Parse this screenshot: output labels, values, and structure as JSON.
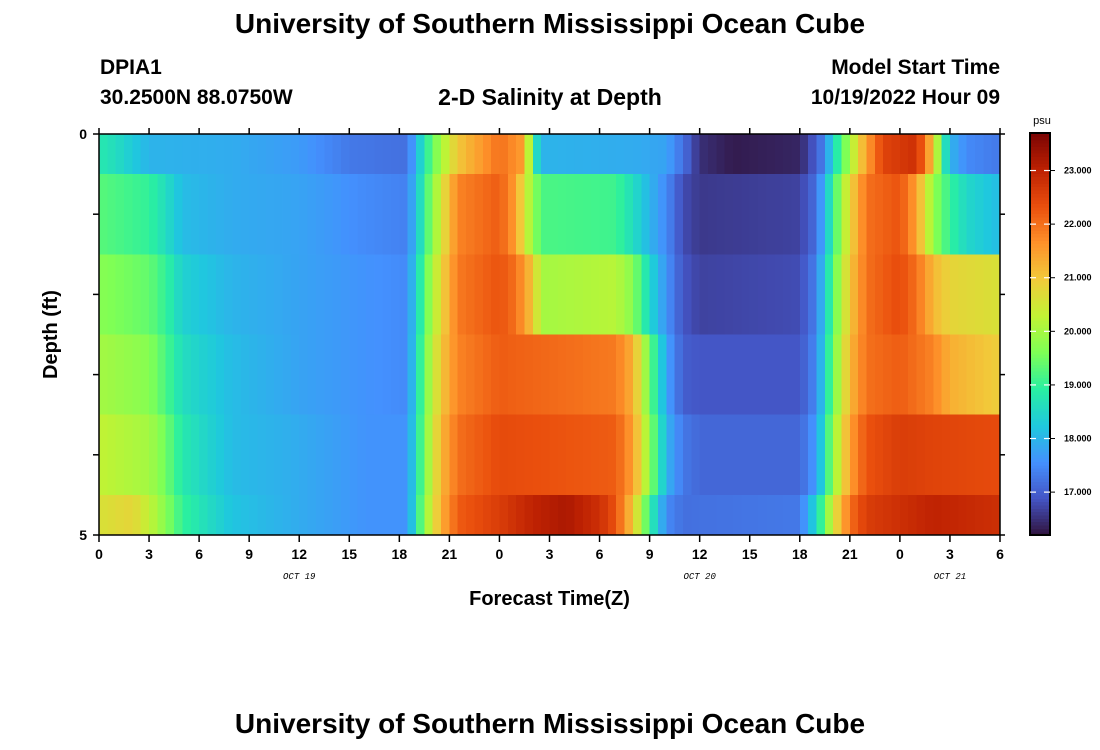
{
  "page": {
    "title": "University of Southern Mississippi Ocean Cube",
    "station_id": "DPIA1",
    "location": "30.2500N  88.0750W",
    "plot_title": "2-D Salinity at Depth",
    "model_start_label": "Model Start Time",
    "model_start_value": "10/19/2022 Hour 09",
    "bottom_title": "University of Southern Mississippi Ocean Cube"
  },
  "chart_data": {
    "type": "heatmap",
    "title": "2-D Salinity at Depth",
    "xlabel": "Forecast Time(Z)",
    "ylabel": "Depth (ft)",
    "x_tick_labels": [
      "0",
      "3",
      "6",
      "9",
      "12",
      "15",
      "18",
      "21",
      "0",
      "3",
      "6",
      "9",
      "12",
      "15",
      "18",
      "21",
      "0",
      "3",
      "6"
    ],
    "x_hours_since_start": [
      0,
      3,
      6,
      9,
      12,
      15,
      18,
      21,
      24,
      27,
      30,
      33,
      36,
      39,
      42,
      45,
      48,
      51,
      54
    ],
    "x_date_labels": [
      {
        "label": "OCT 19",
        "at_hour": 12
      },
      {
        "label": "OCT 20",
        "at_hour": 36
      },
      {
        "label": "OCT 21",
        "at_hour": 51
      }
    ],
    "xlim": [
      0,
      54
    ],
    "y_tick_labels": [
      "0",
      "5"
    ],
    "ylim": [
      0,
      5
    ],
    "y_inverted": true,
    "depth_rows": [
      {
        "range": [
          0.0,
          0.5
        ],
        "keyframes": [
          [
            0,
            18.8
          ],
          [
            1,
            18.6
          ],
          [
            3,
            18.0
          ],
          [
            8,
            17.9
          ],
          [
            12,
            17.7
          ],
          [
            15,
            17.3
          ],
          [
            18.5,
            17.2
          ],
          [
            19.5,
            18.8
          ],
          [
            20.5,
            20.0
          ],
          [
            21.5,
            21.0
          ],
          [
            24,
            22.0
          ],
          [
            25.5,
            21.5
          ],
          [
            26,
            19.0
          ],
          [
            26.5,
            18.0
          ],
          [
            32,
            17.9
          ],
          [
            34,
            17.8
          ],
          [
            35,
            17.2
          ],
          [
            36,
            16.5
          ],
          [
            38,
            16.3
          ],
          [
            42,
            16.4
          ],
          [
            43,
            17.0
          ],
          [
            43.5,
            17.5
          ],
          [
            44,
            18.5
          ],
          [
            45,
            20.0
          ],
          [
            46,
            21.5
          ],
          [
            47,
            22.5
          ],
          [
            49,
            22.8
          ],
          [
            50,
            21.0
          ],
          [
            50.5,
            19.2
          ],
          [
            51,
            18.0
          ],
          [
            52,
            17.5
          ],
          [
            54,
            17.3
          ]
        ]
      },
      {
        "range": [
          0.5,
          1.5
        ],
        "keyframes": [
          [
            0,
            19.3
          ],
          [
            3,
            19.0
          ],
          [
            4,
            18.6
          ],
          [
            5,
            18.1
          ],
          [
            8,
            17.9
          ],
          [
            12,
            17.8
          ],
          [
            16,
            17.5
          ],
          [
            18.5,
            17.4
          ],
          [
            19.5,
            19.0
          ],
          [
            20.5,
            20.5
          ],
          [
            21.5,
            21.8
          ],
          [
            24,
            22.2
          ],
          [
            25,
            21.5
          ],
          [
            25.5,
            20.5
          ],
          [
            26.5,
            19.2
          ],
          [
            31,
            19.1
          ],
          [
            32,
            18.6
          ],
          [
            33,
            18.0
          ],
          [
            34,
            17.5
          ],
          [
            35,
            16.8
          ],
          [
            36,
            16.6
          ],
          [
            42,
            16.7
          ],
          [
            43,
            17.2
          ],
          [
            44,
            19.0
          ],
          [
            45,
            20.8
          ],
          [
            46,
            22.0
          ],
          [
            48,
            22.3
          ],
          [
            49,
            21.5
          ],
          [
            50,
            19.8
          ],
          [
            51,
            19.0
          ],
          [
            52,
            18.5
          ],
          [
            54,
            18.1
          ]
        ]
      },
      {
        "range": [
          1.5,
          2.5
        ],
        "keyframes": [
          [
            0,
            19.7
          ],
          [
            3,
            19.4
          ],
          [
            4,
            19.0
          ],
          [
            5,
            18.4
          ],
          [
            8,
            18.0
          ],
          [
            12,
            17.8
          ],
          [
            16,
            17.6
          ],
          [
            18.5,
            17.5
          ],
          [
            19.5,
            19.3
          ],
          [
            20.5,
            20.8
          ],
          [
            21.5,
            21.9
          ],
          [
            24,
            22.3
          ],
          [
            25,
            22.0
          ],
          [
            26,
            21.0
          ],
          [
            26.5,
            20.0
          ],
          [
            31,
            20.2
          ],
          [
            32,
            19.7
          ],
          [
            33,
            18.5
          ],
          [
            34,
            17.6
          ],
          [
            35,
            16.9
          ],
          [
            36,
            16.7
          ],
          [
            42,
            16.8
          ],
          [
            43,
            17.4
          ],
          [
            44,
            19.3
          ],
          [
            45,
            21.0
          ],
          [
            46,
            22.0
          ],
          [
            48,
            22.4
          ],
          [
            49,
            22.0
          ],
          [
            50,
            21.2
          ],
          [
            51,
            20.8
          ],
          [
            54,
            20.6
          ]
        ]
      },
      {
        "range": [
          2.5,
          3.5
        ],
        "keyframes": [
          [
            0,
            20.0
          ],
          [
            3,
            19.7
          ],
          [
            4,
            19.2
          ],
          [
            5,
            18.6
          ],
          [
            8,
            18.1
          ],
          [
            12,
            17.8
          ],
          [
            16,
            17.6
          ],
          [
            18.5,
            17.5
          ],
          [
            19.5,
            19.5
          ],
          [
            20.5,
            21.0
          ],
          [
            21.5,
            21.8
          ],
          [
            24,
            22.2
          ],
          [
            31,
            21.9
          ],
          [
            32,
            21.3
          ],
          [
            33,
            19.5
          ],
          [
            34,
            17.8
          ],
          [
            35,
            17.0
          ],
          [
            36,
            16.9
          ],
          [
            42,
            16.9
          ],
          [
            43,
            17.5
          ],
          [
            44,
            19.5
          ],
          [
            45,
            21.2
          ],
          [
            46,
            22.0
          ],
          [
            48,
            22.2
          ],
          [
            50,
            21.8
          ],
          [
            51,
            21.3
          ],
          [
            54,
            20.9
          ]
        ]
      },
      {
        "range": [
          3.5,
          4.5
        ],
        "keyframes": [
          [
            0,
            20.3
          ],
          [
            3,
            20.0
          ],
          [
            4,
            19.5
          ],
          [
            5,
            18.8
          ],
          [
            8,
            18.1
          ],
          [
            12,
            17.9
          ],
          [
            16,
            17.6
          ],
          [
            18.5,
            17.6
          ],
          [
            19.5,
            19.6
          ],
          [
            20.5,
            21.2
          ],
          [
            21.5,
            22.0
          ],
          [
            24,
            22.4
          ],
          [
            31,
            22.2
          ],
          [
            32,
            21.5
          ],
          [
            33,
            19.8
          ],
          [
            34,
            18.0
          ],
          [
            35,
            17.3
          ],
          [
            36,
            17.1
          ],
          [
            42,
            17.1
          ],
          [
            43,
            17.7
          ],
          [
            44,
            19.8
          ],
          [
            45,
            21.5
          ],
          [
            46,
            22.3
          ],
          [
            48,
            22.6
          ],
          [
            50,
            22.5
          ],
          [
            54,
            22.4
          ]
        ]
      },
      {
        "range": [
          4.5,
          5.0
        ],
        "keyframes": [
          [
            0,
            20.6
          ],
          [
            2,
            20.8
          ],
          [
            3,
            20.3
          ],
          [
            4,
            19.7
          ],
          [
            5,
            19.0
          ],
          [
            8,
            18.2
          ],
          [
            12,
            17.9
          ],
          [
            16,
            17.6
          ],
          [
            18.5,
            17.6
          ],
          [
            19.5,
            19.8
          ],
          [
            20.5,
            21.3
          ],
          [
            21.5,
            22.2
          ],
          [
            24,
            22.6
          ],
          [
            26,
            23.0
          ],
          [
            28,
            23.2
          ],
          [
            30,
            22.8
          ],
          [
            31,
            22.3
          ],
          [
            32,
            21.0
          ],
          [
            33,
            19.0
          ],
          [
            34,
            17.5
          ],
          [
            35,
            17.2
          ],
          [
            42,
            17.3
          ],
          [
            43,
            18.5
          ],
          [
            44,
            20.5
          ],
          [
            45,
            22.0
          ],
          [
            46,
            22.6
          ],
          [
            48,
            22.8
          ],
          [
            50,
            23.0
          ],
          [
            52,
            22.9
          ],
          [
            54,
            22.8
          ]
        ]
      }
    ],
    "colorbar": {
      "unit": "psu",
      "range": [
        16.2,
        23.7
      ],
      "ticks": [
        17.0,
        18.0,
        19.0,
        20.0,
        21.0,
        22.0,
        23.0
      ],
      "tick_labels": [
        "17.000",
        "18.000",
        "19.000",
        "20.000",
        "21.000",
        "22.000",
        "23.000"
      ],
      "colormap": [
        "#30123b",
        "#4454c4",
        "#4490fe",
        "#1fc8de",
        "#29efa2",
        "#7dff56",
        "#c1f334",
        "#f1ca3a",
        "#fe922a",
        "#ea4f0d",
        "#be2102",
        "#7a0403"
      ]
    }
  }
}
